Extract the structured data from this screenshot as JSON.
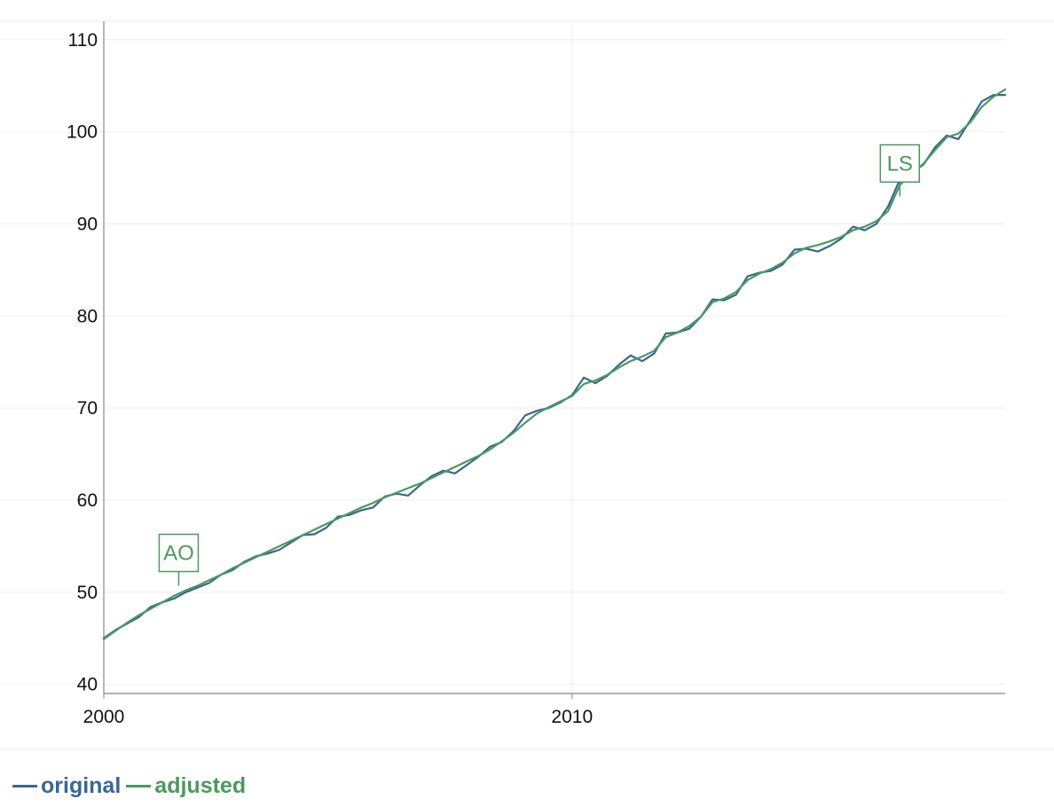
{
  "chart_data": {
    "type": "line",
    "xlabel": "",
    "ylabel": "",
    "xlim": [
      2000,
      2019.25
    ],
    "ylim": [
      39,
      112
    ],
    "x_ticks": [
      {
        "value": 2000,
        "label": "2000"
      },
      {
        "value": 2010,
        "label": "2010"
      }
    ],
    "y_ticks": [
      {
        "value": 40,
        "label": "40"
      },
      {
        "value": 50,
        "label": "50"
      },
      {
        "value": 60,
        "label": "60"
      },
      {
        "value": 70,
        "label": "70"
      },
      {
        "value": 80,
        "label": "80"
      },
      {
        "value": 90,
        "label": "90"
      },
      {
        "value": 100,
        "label": "100"
      },
      {
        "value": 110,
        "label": "110"
      }
    ],
    "grid": true,
    "legend_position": "bottom-left",
    "series": [
      {
        "name": "original",
        "color": "#3b6693",
        "x": [
          2000.0,
          2000.25,
          2000.5,
          2000.75,
          2001.0,
          2001.25,
          2001.5,
          2001.75,
          2002.0,
          2002.25,
          2002.5,
          2002.75,
          2003.0,
          2003.25,
          2003.5,
          2003.75,
          2004.0,
          2004.25,
          2004.5,
          2004.75,
          2005.0,
          2005.25,
          2005.5,
          2005.75,
          2006.0,
          2006.25,
          2006.5,
          2006.75,
          2007.0,
          2007.25,
          2007.5,
          2007.75,
          2008.0,
          2008.25,
          2008.5,
          2008.75,
          2009.0,
          2009.25,
          2009.5,
          2009.75,
          2010.0,
          2010.25,
          2010.5,
          2010.75,
          2011.0,
          2011.25,
          2011.5,
          2011.75,
          2012.0,
          2012.25,
          2012.5,
          2012.75,
          2013.0,
          2013.25,
          2013.5,
          2013.75,
          2014.0,
          2014.25,
          2014.5,
          2014.75,
          2015.0,
          2015.25,
          2015.5,
          2015.75,
          2016.0,
          2016.25,
          2016.5,
          2016.75,
          2017.0,
          2017.25,
          2017.5,
          2017.75,
          2018.0,
          2018.25,
          2018.5,
          2018.75,
          2019.0,
          2019.25
        ],
        "values": [
          45.0,
          45.9,
          46.6,
          47.3,
          48.4,
          48.9,
          49.3,
          50.0,
          50.5,
          51.0,
          51.9,
          52.4,
          53.3,
          53.9,
          54.2,
          54.6,
          55.4,
          56.2,
          56.3,
          57.0,
          58.2,
          58.4,
          58.9,
          59.2,
          60.4,
          60.7,
          60.5,
          61.6,
          62.6,
          63.2,
          62.9,
          63.8,
          64.7,
          65.8,
          66.3,
          67.5,
          69.2,
          69.7,
          70.0,
          70.6,
          71.4,
          73.3,
          72.7,
          73.5,
          74.7,
          75.7,
          75.1,
          75.9,
          78.1,
          78.2,
          78.6,
          79.9,
          81.8,
          81.7,
          82.3,
          84.3,
          84.7,
          84.9,
          85.6,
          87.2,
          87.3,
          87.0,
          87.6,
          88.4,
          89.7,
          89.3,
          90.0,
          91.9,
          94.8,
          95.6,
          96.4,
          98.3,
          99.6,
          99.2,
          101.2,
          103.3,
          104.0,
          104.0
        ]
      },
      {
        "name": "adjusted",
        "color": "#4a9a5c",
        "x": [
          2000.0,
          2000.25,
          2000.5,
          2000.75,
          2001.0,
          2001.25,
          2001.5,
          2001.75,
          2002.0,
          2002.25,
          2002.5,
          2002.75,
          2003.0,
          2003.25,
          2003.5,
          2003.75,
          2004.0,
          2004.25,
          2004.5,
          2004.75,
          2005.0,
          2005.25,
          2005.5,
          2005.75,
          2006.0,
          2006.25,
          2006.5,
          2006.75,
          2007.0,
          2007.25,
          2007.5,
          2007.75,
          2008.0,
          2008.25,
          2008.5,
          2008.75,
          2009.0,
          2009.25,
          2009.5,
          2009.75,
          2010.0,
          2010.25,
          2010.5,
          2010.75,
          2011.0,
          2011.25,
          2011.5,
          2011.75,
          2012.0,
          2012.25,
          2012.5,
          2012.75,
          2013.0,
          2013.25,
          2013.5,
          2013.75,
          2014.0,
          2014.25,
          2014.5,
          2014.75,
          2015.0,
          2015.25,
          2015.5,
          2015.75,
          2016.0,
          2016.25,
          2016.5,
          2016.75,
          2017.0,
          2017.25,
          2017.5,
          2017.75,
          2018.0,
          2018.25,
          2018.5,
          2018.75,
          2019.0,
          2019.25
        ],
        "values": [
          44.9,
          45.8,
          46.7,
          47.5,
          48.2,
          48.9,
          49.6,
          50.2,
          50.7,
          51.3,
          51.9,
          52.6,
          53.2,
          53.8,
          54.4,
          55.0,
          55.6,
          56.2,
          56.8,
          57.4,
          58.0,
          58.6,
          59.2,
          59.7,
          60.3,
          60.8,
          61.3,
          61.8,
          62.4,
          63.0,
          63.6,
          64.2,
          64.8,
          65.5,
          66.4,
          67.3,
          68.4,
          69.4,
          70.1,
          70.7,
          71.3,
          72.6,
          73.0,
          73.6,
          74.4,
          75.1,
          75.6,
          76.2,
          77.7,
          78.2,
          78.9,
          79.9,
          81.5,
          81.9,
          82.6,
          83.9,
          84.6,
          85.1,
          85.8,
          86.8,
          87.4,
          87.7,
          88.1,
          88.6,
          89.3,
          89.7,
          90.3,
          91.4,
          94.2,
          95.5,
          96.5,
          98.0,
          99.4,
          99.8,
          101.0,
          102.7,
          103.8,
          104.6
        ]
      }
    ],
    "annotations": [
      {
        "label": "AO",
        "x": 2001.6,
        "y": 50.7,
        "color": "#4a9a5c"
      },
      {
        "label": "LS",
        "x": 2017.0,
        "y": 93.0,
        "color": "#4a9a5c"
      }
    ]
  }
}
